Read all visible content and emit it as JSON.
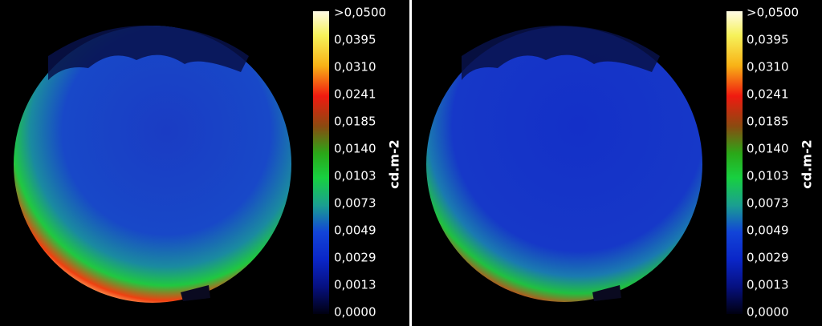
{
  "panels": [
    {
      "colorbar": {
        "labels": [
          ">0,0500",
          "0,0395",
          "0,0310",
          "0,0241",
          "0,0185",
          "0,0140",
          "0,0103",
          "0,0073",
          "0,0049",
          "0,0029",
          "0,0013",
          "0,0000"
        ],
        "unit": "cd.m-2"
      }
    },
    {
      "colorbar": {
        "labels": [
          ">0,0500",
          "0,0395",
          "0,0310",
          "0,0241",
          "0,0185",
          "0,0140",
          "0,0103",
          "0,0073",
          "0,0049",
          "0,0029",
          "0,0013",
          "0,0000"
        ],
        "unit": "cd.m-2"
      }
    }
  ]
}
